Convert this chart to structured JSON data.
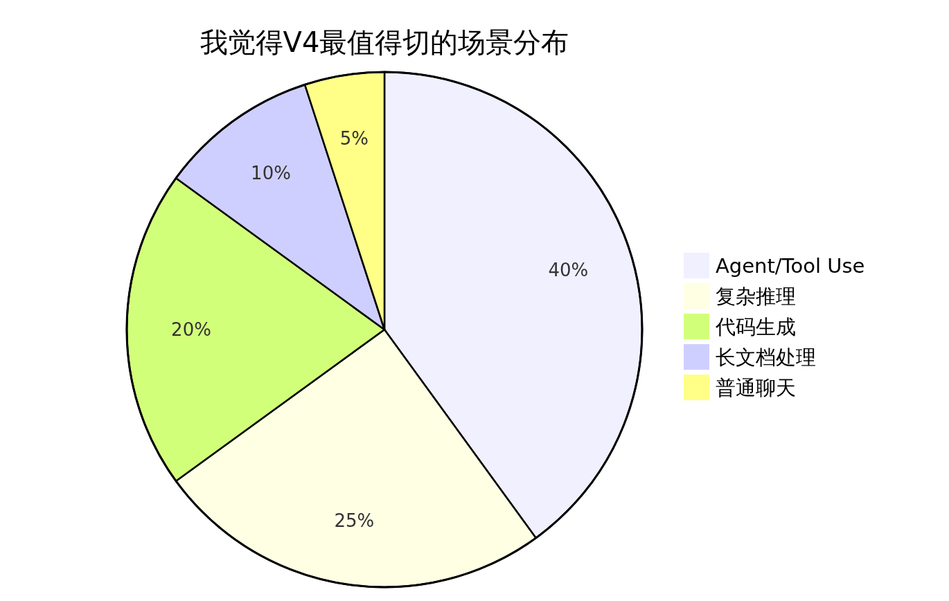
{
  "chart_data": {
    "type": "pie",
    "title": "我觉得V4最值得切的场景分布",
    "categories": [
      "Agent/Tool Use",
      "复杂推理",
      "代码生成",
      "长文档处理",
      "普通聊天"
    ],
    "values": [
      40,
      25,
      20,
      10,
      5
    ],
    "value_labels": [
      "40%",
      "25%",
      "20%",
      "10%",
      "5%"
    ],
    "colors": [
      "#f0f0ff",
      "#ffffe4",
      "#d2ff7a",
      "#cfcfff",
      "#ffff88"
    ],
    "legend": "right"
  }
}
